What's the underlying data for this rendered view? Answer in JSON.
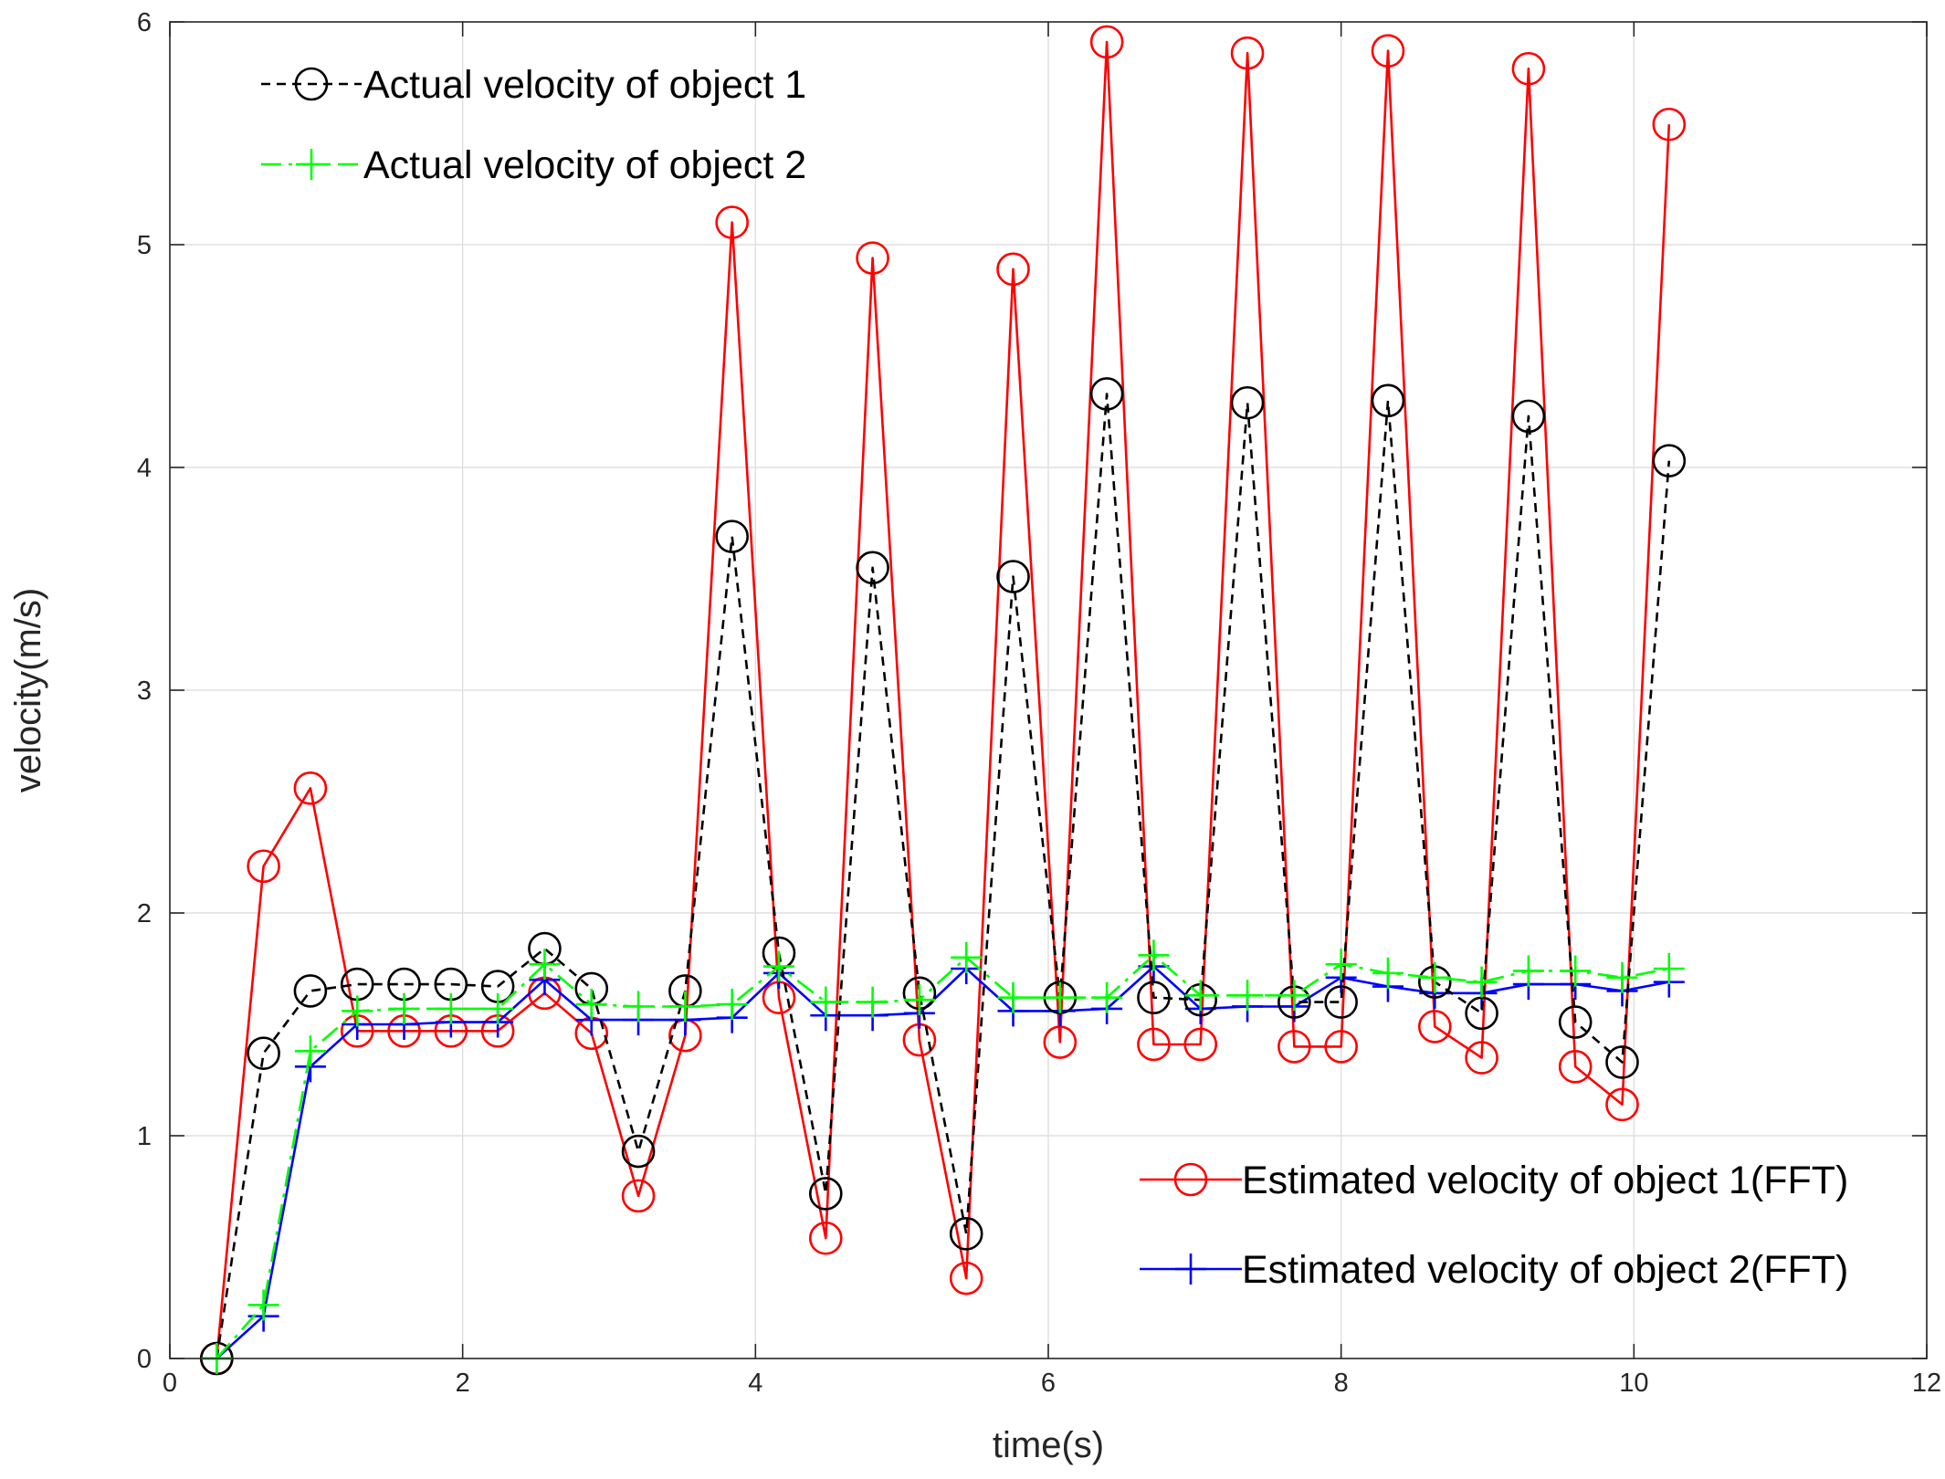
{
  "chart_data": {
    "type": "line",
    "title": "",
    "xlabel": "time(s)",
    "ylabel": "velocity(m/s)",
    "xlim": [
      0,
      12
    ],
    "ylim": [
      0,
      6
    ],
    "xticks": [
      "0",
      "2",
      "4",
      "6",
      "8",
      "10",
      "12"
    ],
    "yticks": [
      "0",
      "1",
      "2",
      "3",
      "4",
      "5",
      "6"
    ],
    "grid": true,
    "legend_placement": {
      "top_group": "top-left",
      "bottom_group": "bottom-right"
    },
    "series": [
      {
        "name": "Actual velocity of object 1",
        "color": "#000000",
        "line": "dashed",
        "marker": "circle",
        "legend_group": "top",
        "x": [
          0.32,
          0.64,
          0.96,
          1.28,
          1.6,
          1.92,
          2.24,
          2.56,
          2.88,
          3.2,
          3.52,
          3.84,
          4.16,
          4.48,
          4.8,
          5.12,
          5.44,
          5.76,
          6.08,
          6.4,
          6.72,
          7.04,
          7.36,
          7.68,
          8.0,
          8.32,
          8.64,
          8.96,
          9.28,
          9.6,
          9.92,
          10.24
        ],
        "y": [
          0.0,
          1.37,
          1.65,
          1.68,
          1.68,
          1.68,
          1.67,
          1.84,
          1.66,
          0.93,
          1.65,
          3.69,
          1.82,
          0.74,
          3.55,
          1.64,
          0.56,
          3.51,
          1.62,
          4.33,
          1.62,
          1.61,
          4.29,
          1.6,
          1.6,
          4.3,
          1.69,
          1.55,
          4.23,
          1.51,
          1.33,
          4.03
        ]
      },
      {
        "name": "Actual velocity of object 2",
        "color": "#00ff00",
        "line": "dashdot",
        "marker": "plus",
        "legend_group": "top",
        "x": [
          0.32,
          0.64,
          0.96,
          1.28,
          1.6,
          1.92,
          2.24,
          2.56,
          2.88,
          3.2,
          3.52,
          3.84,
          4.16,
          4.48,
          4.8,
          5.12,
          5.44,
          5.76,
          6.08,
          6.4,
          6.72,
          7.04,
          7.36,
          7.68,
          8.0,
          8.32,
          8.64,
          8.96,
          9.28,
          9.6,
          9.92,
          10.24
        ],
        "y": [
          0.0,
          0.24,
          1.38,
          1.56,
          1.57,
          1.57,
          1.57,
          1.77,
          1.59,
          1.58,
          1.58,
          1.59,
          1.76,
          1.6,
          1.6,
          1.61,
          1.8,
          1.62,
          1.62,
          1.62,
          1.81,
          1.63,
          1.63,
          1.63,
          1.77,
          1.73,
          1.71,
          1.69,
          1.74,
          1.74,
          1.71,
          1.75
        ]
      },
      {
        "name": "Estimated velocity of object 1(FFT)",
        "color": "#ff0000",
        "line": "solid",
        "marker": "circle",
        "legend_group": "bottom",
        "x": [
          0.32,
          0.64,
          0.96,
          1.28,
          1.6,
          1.92,
          2.24,
          2.56,
          2.88,
          3.2,
          3.52,
          3.84,
          4.16,
          4.48,
          4.8,
          5.12,
          5.44,
          5.76,
          6.08,
          6.4,
          6.72,
          7.04,
          7.36,
          7.68,
          8.0,
          8.32,
          8.64,
          8.96,
          9.28,
          9.6,
          9.92,
          10.24
        ],
        "y": [
          0.0,
          2.21,
          2.56,
          1.47,
          1.47,
          1.47,
          1.47,
          1.64,
          1.46,
          0.73,
          1.45,
          5.1,
          1.62,
          0.54,
          4.94,
          1.43,
          0.36,
          4.89,
          1.42,
          5.91,
          1.41,
          1.41,
          5.86,
          1.4,
          1.4,
          5.87,
          1.49,
          1.35,
          5.79,
          1.31,
          1.14,
          5.54
        ]
      },
      {
        "name": "Estimated velocity of object 2(FFT)",
        "color": "#0000ff",
        "line": "solid",
        "marker": "plus",
        "legend_group": "bottom",
        "x": [
          0.32,
          0.64,
          0.96,
          1.28,
          1.6,
          1.92,
          2.24,
          2.56,
          2.88,
          3.2,
          3.52,
          3.84,
          4.16,
          4.48,
          4.8,
          5.12,
          5.44,
          5.76,
          6.08,
          6.4,
          6.72,
          7.04,
          7.36,
          7.68,
          8.0,
          8.32,
          8.64,
          8.96,
          9.28,
          9.6,
          9.92,
          10.24
        ],
        "y": [
          0.0,
          0.19,
          1.31,
          1.5,
          1.5,
          1.51,
          1.51,
          1.7,
          1.52,
          1.52,
          1.52,
          1.53,
          1.73,
          1.54,
          1.54,
          1.55,
          1.75,
          1.56,
          1.56,
          1.57,
          1.76,
          1.57,
          1.58,
          1.58,
          1.71,
          1.67,
          1.64,
          1.64,
          1.68,
          1.68,
          1.65,
          1.69
        ]
      }
    ]
  }
}
